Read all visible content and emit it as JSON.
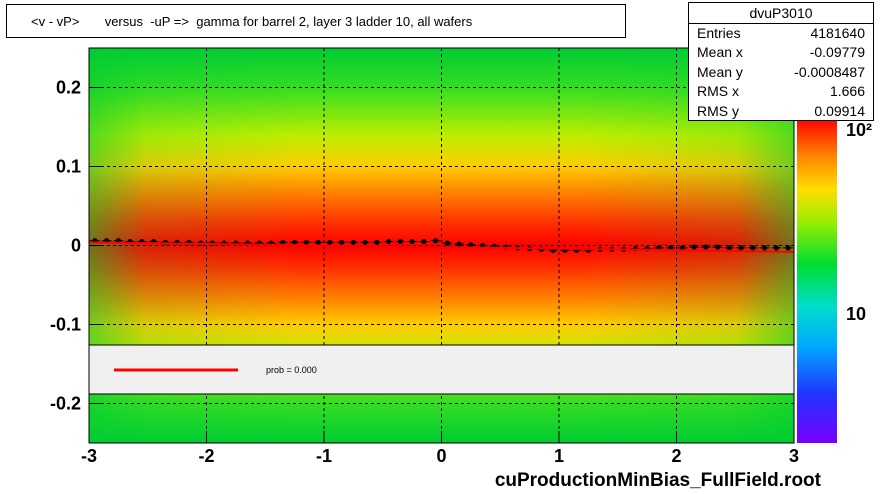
{
  "title": "<v - vP>       versus  -uP =>  gamma for barrel 2, layer 3 ladder 10, all wafers",
  "stats": {
    "name": "dvuP3010",
    "rows": [
      {
        "key": "Entries",
        "value": "4181640"
      },
      {
        "key": "Mean x",
        "value": "-0.09779"
      },
      {
        "key": "Mean y",
        "value": "-0.0008487"
      },
      {
        "key": "RMS x",
        "value": "1.666"
      },
      {
        "key": "RMS y",
        "value": "0.09914"
      }
    ]
  },
  "legend": {
    "fit_text": "prob = 0.000",
    "line_color": "#ff0000"
  },
  "footer": "cuProductionMinBias_FullField.root",
  "colors": {
    "profile_points": "#000000",
    "fit_line": "#ff0000",
    "stat_box_border": "#000000",
    "legend_fill": "#f0f0f0"
  },
  "chart_data": {
    "type": "heatmap",
    "title": "<v - vP>       versus  -uP =>  gamma for barrel 2, layer 3 ladder 10, all wafers",
    "xlim": [
      -3,
      3
    ],
    "ylim": [
      -0.25,
      0.25
    ],
    "x_ticks": [
      -3,
      -2,
      -1,
      0,
      1,
      2,
      3
    ],
    "x_tick_labels": [
      "-3",
      "-2",
      "-1",
      "0",
      "1",
      "2",
      "3"
    ],
    "y_ticks": [
      -0.2,
      -0.1,
      0,
      0.1,
      0.2
    ],
    "y_tick_labels": [
      "-0.2",
      "-0.1",
      "0",
      "0.1",
      "0.2"
    ],
    "grid": true,
    "colorbar": {
      "scale": "log",
      "tick_labels": [
        "10",
        "10²"
      ]
    },
    "profile_series": {
      "name": "profile",
      "x": [
        -2.95,
        -2.85,
        -2.75,
        -2.65,
        -2.55,
        -2.45,
        -2.35,
        -2.25,
        -2.15,
        -2.05,
        -1.95,
        -1.85,
        -1.75,
        -1.65,
        -1.55,
        -1.45,
        -1.35,
        -1.25,
        -1.15,
        -1.05,
        -0.95,
        -0.85,
        -0.75,
        -0.65,
        -0.55,
        -0.45,
        -0.35,
        -0.25,
        -0.15,
        -0.05,
        0.05,
        0.15,
        0.25,
        0.35,
        0.45,
        0.55,
        0.65,
        0.75,
        0.85,
        0.95,
        1.05,
        1.15,
        1.25,
        1.35,
        1.45,
        1.55,
        1.65,
        1.75,
        1.85,
        1.95,
        2.05,
        2.15,
        2.25,
        2.35,
        2.45,
        2.55,
        2.65,
        2.75,
        2.85,
        2.95
      ],
      "y": [
        0.006,
        0.006,
        0.006,
        0.005,
        0.005,
        0.005,
        0.004,
        0.004,
        0.004,
        0.003,
        0.003,
        0.003,
        0.003,
        0.003,
        0.003,
        0.003,
        0.004,
        0.004,
        0.004,
        0.004,
        0.004,
        0.004,
        0.004,
        0.004,
        0.004,
        0.005,
        0.005,
        0.005,
        0.005,
        0.006,
        0.003,
        0.002,
        0.001,
        0.0,
        -0.001,
        -0.002,
        -0.003,
        -0.004,
        -0.005,
        -0.006,
        -0.006,
        -0.006,
        -0.006,
        -0.005,
        -0.005,
        -0.005,
        -0.004,
        -0.004,
        -0.003,
        -0.003,
        -0.003,
        -0.002,
        -0.002,
        -0.002,
        -0.003,
        -0.003,
        -0.003,
        -0.003,
        -0.003,
        -0.003
      ]
    },
    "fit_line": {
      "name": "fit",
      "x": [
        -3,
        3
      ],
      "y": [
        0.004,
        -0.008
      ]
    }
  }
}
